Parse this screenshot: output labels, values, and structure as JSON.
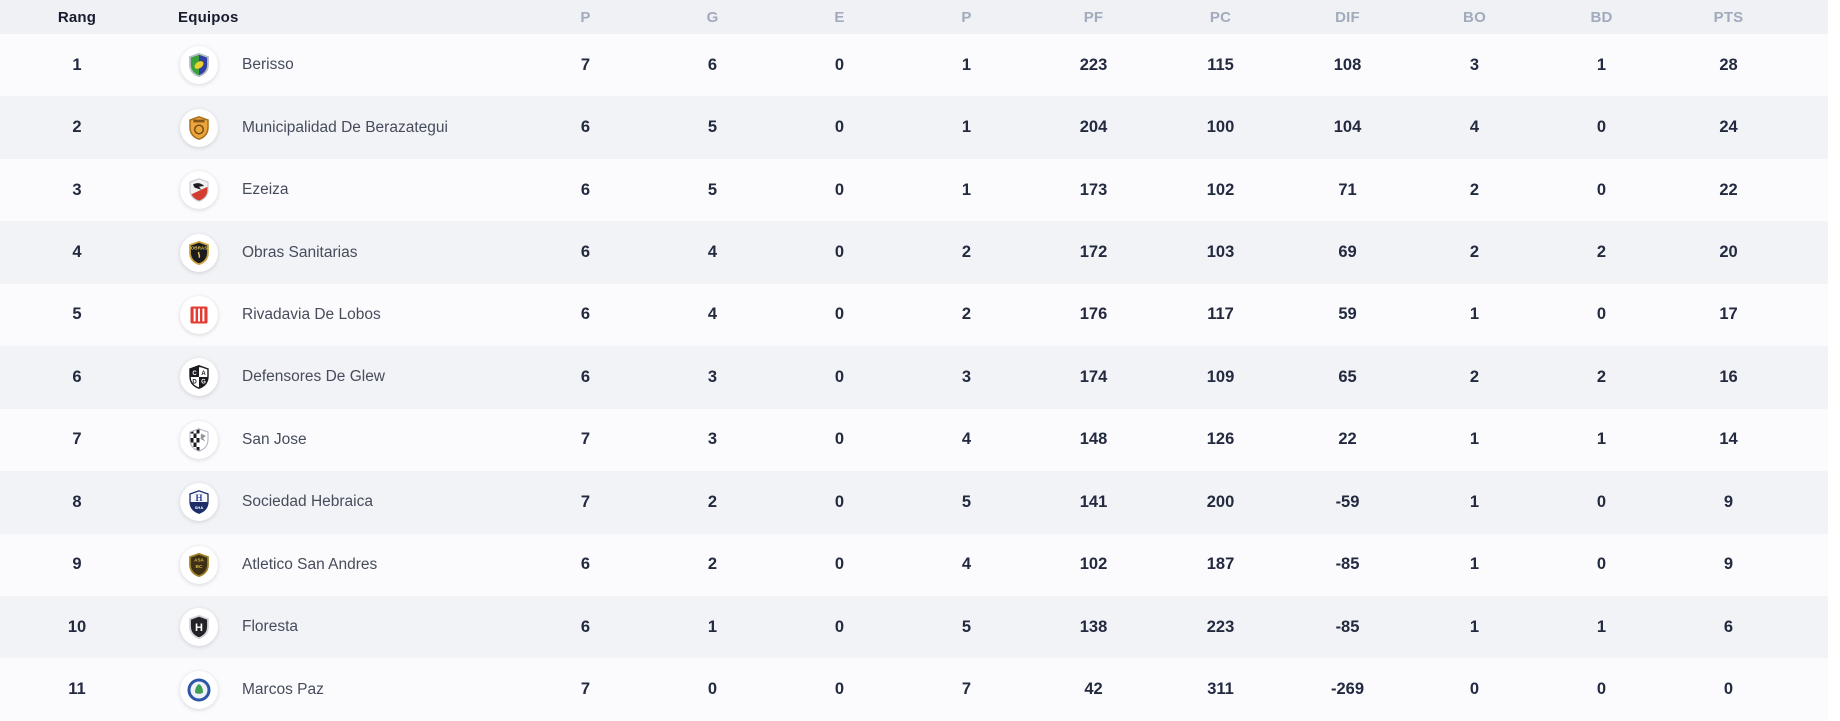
{
  "colors": {
    "page": "#ffffff",
    "header_bg": "#eff1f4",
    "row_odd": "#fbfbfd",
    "row_even": "#f2f3f6",
    "number_text": "#232a40",
    "team_text": "#464c5c",
    "header_dark_text": "#181c2e",
    "header_num_text": "#a2aabc"
  },
  "table": {
    "columns": [
      {
        "key": "rank",
        "label": "Rang",
        "style": "dark-center"
      },
      {
        "key": "team",
        "label": "Equipos",
        "style": "dark-left"
      },
      {
        "key": "p",
        "label": "P",
        "style": "num"
      },
      {
        "key": "g",
        "label": "G",
        "style": "num"
      },
      {
        "key": "e",
        "label": "E",
        "style": "num"
      },
      {
        "key": "pp",
        "label": "P",
        "style": "num"
      },
      {
        "key": "pf",
        "label": "PF",
        "style": "num"
      },
      {
        "key": "pc",
        "label": "PC",
        "style": "num"
      },
      {
        "key": "dif",
        "label": "DIF",
        "style": "num"
      },
      {
        "key": "bo",
        "label": "BO",
        "style": "num"
      },
      {
        "key": "bd",
        "label": "BD",
        "style": "num"
      },
      {
        "key": "pts",
        "label": "PTS",
        "style": "num"
      }
    ],
    "rows": [
      {
        "rank": 1,
        "team": "Berisso",
        "stats": [
          7,
          6,
          0,
          1,
          223,
          115,
          108,
          3,
          1,
          28
        ],
        "logo": {
          "type": "split",
          "c1": "#3aa13c",
          "c2": "#32409f",
          "c3": "#e8d22f",
          "border": "#b7bcc6"
        }
      },
      {
        "rank": 2,
        "team": "Municipalidad De Berazategui",
        "stats": [
          6,
          5,
          0,
          1,
          204,
          100,
          104,
          4,
          0,
          24
        ],
        "logo": {
          "type": "emblem",
          "c1": "#eca43c",
          "c2": "#a8701b",
          "c3": "#6e4a10"
        }
      },
      {
        "rank": 3,
        "team": "Ezeiza",
        "stats": [
          6,
          5,
          0,
          1,
          173,
          102,
          71,
          2,
          0,
          22
        ],
        "logo": {
          "type": "bird",
          "c1": "#f2f2f3",
          "c2": "#d23c31",
          "c3": "#1f1f24"
        }
      },
      {
        "rank": 4,
        "team": "Obras Sanitarias",
        "stats": [
          6,
          4,
          0,
          2,
          172,
          103,
          69,
          2,
          2,
          20
        ],
        "logo": {
          "type": "text-shield",
          "c1": "#1b1b1f",
          "c2": "#caa43c",
          "c3": "#e3c454",
          "text": "OBRAS",
          "squiggle": true
        }
      },
      {
        "rank": 5,
        "team": "Rivadavia De Lobos",
        "stats": [
          6,
          4,
          0,
          2,
          176,
          117,
          59,
          1,
          0,
          17
        ],
        "logo": {
          "type": "stripes",
          "c1": "#e23c33",
          "c2": "#ffffff"
        }
      },
      {
        "rank": 6,
        "team": "Defensores De Glew",
        "stats": [
          6,
          3,
          0,
          3,
          174,
          109,
          65,
          2,
          2,
          16
        ],
        "logo": {
          "type": "quarters",
          "c1": "#1b1b1f",
          "c2": "#ffffff"
        }
      },
      {
        "rank": 7,
        "team": "San Jose",
        "stats": [
          7,
          3,
          0,
          4,
          148,
          126,
          22,
          1,
          1,
          14
        ],
        "logo": {
          "type": "checker",
          "c1": "#1b1b1f",
          "c2": "#ffffff",
          "c3": "#9094a0"
        }
      },
      {
        "rank": 8,
        "team": "Sociedad Hebraica",
        "stats": [
          7,
          2,
          0,
          5,
          141,
          200,
          -59,
          1,
          0,
          9
        ],
        "logo": {
          "type": "split-h",
          "c1": "#f5f6f9",
          "c2": "#1c2d68",
          "c3": "#2b3f93",
          "text": "SHA"
        }
      },
      {
        "rank": 9,
        "team": "Atletico San Andres",
        "stats": [
          6,
          2,
          0,
          4,
          102,
          187,
          -85,
          1,
          0,
          9
        ],
        "logo": {
          "type": "text-shield",
          "c1": "#3d3014",
          "c2": "#a1832a",
          "c3": "#d9b84d",
          "text": "ASA",
          "sub": "BC"
        }
      },
      {
        "rank": 10,
        "team": "Floresta",
        "stats": [
          6,
          1,
          0,
          5,
          138,
          223,
          -85,
          1,
          1,
          6
        ],
        "logo": {
          "type": "text-shield",
          "c1": "#232327",
          "c2": "#d4d4da",
          "c3": "#ffffff",
          "text": "H",
          "big": true
        }
      },
      {
        "rank": 11,
        "team": "Marcos Paz",
        "stats": [
          7,
          0,
          0,
          7,
          42,
          311,
          -269,
          0,
          0,
          0
        ],
        "logo": {
          "type": "ring",
          "c1": "#2d55a8",
          "c2": "#eef1f7",
          "c3": "#3f9e52"
        }
      }
    ]
  }
}
